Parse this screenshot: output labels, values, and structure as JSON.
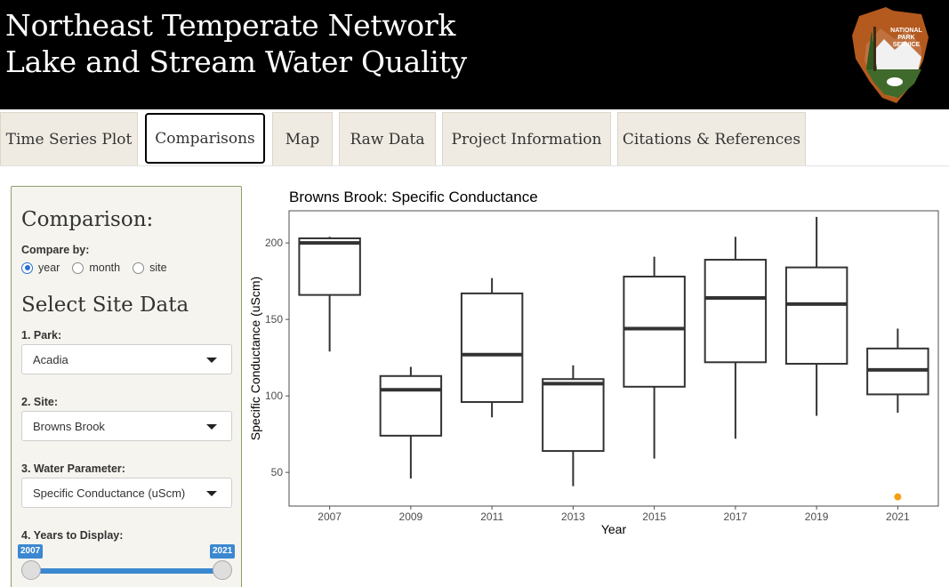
{
  "header": {
    "title_line1": "Northeast Temperate Network",
    "title_line2": "Lake and Stream Water Quality",
    "logo_text_line1": "NATIONAL",
    "logo_text_line2": "PARK",
    "logo_text_line3": "SERVICE",
    "logo_icon": "national-park-service-arrowhead"
  },
  "tabs": [
    {
      "label": "Time Series Plot",
      "active": false
    },
    {
      "label": "Comparisons",
      "active": true
    },
    {
      "label": "Map",
      "active": false
    },
    {
      "label": "Raw Data",
      "active": false
    },
    {
      "label": "Project Information",
      "active": false
    },
    {
      "label": "Citations & References",
      "active": false
    }
  ],
  "sidebar": {
    "comparison_heading": "Comparison:",
    "compare_by_label": "Compare by:",
    "compare_options": [
      "year",
      "month",
      "site"
    ],
    "compare_selected": "year",
    "select_heading": "Select Site Data",
    "park_label": "1. Park:",
    "park_value": "Acadia",
    "site_label": "2. Site:",
    "site_value": "Browns Brook",
    "param_label": "3. Water Parameter:",
    "param_value": "Specific Conductance (uScm)",
    "years_label": "4. Years to Display:",
    "year_min": "2007",
    "year_max": "2021"
  },
  "chart_data": {
    "type": "box",
    "title": "Browns Brook: Specific Conductance",
    "xlabel": "Year",
    "ylabel": "Specific Conductance (uScm)",
    "categories": [
      "2007",
      "2009",
      "2011",
      "2013",
      "2015",
      "2017",
      "2019",
      "2021"
    ],
    "yticks": [
      50,
      100,
      150,
      200
    ],
    "ylim": [
      28,
      221
    ],
    "boxes": [
      {
        "x": "2007",
        "whisker_low": 129,
        "q1": 166,
        "median": 200,
        "q3": 203,
        "whisker_high": 204
      },
      {
        "x": "2009",
        "whisker_low": 46,
        "q1": 74,
        "median": 104,
        "q3": 113,
        "whisker_high": 119
      },
      {
        "x": "2011",
        "whisker_low": 86,
        "q1": 96,
        "median": 127,
        "q3": 167,
        "whisker_high": 177
      },
      {
        "x": "2013",
        "whisker_low": 41,
        "q1": 64,
        "median": 108,
        "q3": 111,
        "whisker_high": 120
      },
      {
        "x": "2015",
        "whisker_low": 59,
        "q1": 106,
        "median": 144,
        "q3": 178,
        "whisker_high": 191
      },
      {
        "x": "2017",
        "whisker_low": 72,
        "q1": 122,
        "median": 164,
        "q3": 189,
        "whisker_high": 204
      },
      {
        "x": "2019",
        "whisker_low": 87,
        "q1": 121,
        "median": 160,
        "q3": 184,
        "whisker_high": 217
      },
      {
        "x": "2021",
        "whisker_low": 89,
        "q1": 101,
        "median": 117,
        "q3": 131,
        "whisker_high": 144
      }
    ],
    "outliers": [
      {
        "x": "2021",
        "y": 34
      }
    ],
    "outlier_color": "#f5a011",
    "box_color": "#333333",
    "grid": false
  }
}
